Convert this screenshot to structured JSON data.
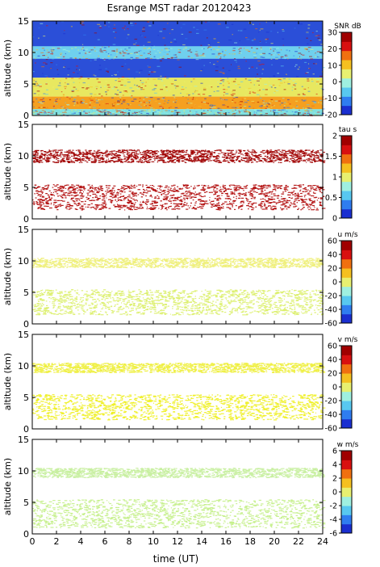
{
  "title": "Esrange MST radar 20120423",
  "xlabel": "time (UT)",
  "ylabel": "altitude (km)",
  "chart_data": [
    {
      "type": "heatmap",
      "panel": "snr",
      "colorbar_label": "SNR dB",
      "colorbar_ticks": [
        30,
        20,
        10,
        0,
        -10,
        -20
      ],
      "clim": [
        -20,
        30
      ],
      "colorbar_colors": [
        "#1a2fd0",
        "#2f7df0",
        "#58c8f0",
        "#9ff0e0",
        "#e8f070",
        "#f5c020",
        "#f07010",
        "#d81010",
        "#a00000"
      ],
      "x": [
        0,
        24
      ],
      "xticks": [
        0,
        2,
        4,
        6,
        8,
        10,
        12,
        14,
        16,
        18,
        20,
        22,
        24
      ],
      "ylim": [
        0,
        15
      ],
      "yticks": [
        0,
        5,
        10,
        15
      ],
      "ylabel": "altitude (km)",
      "layers": [
        {
          "alt_range": [
            6,
            15
          ],
          "value": -14,
          "color": "#2b4fd8"
        },
        {
          "alt_range": [
            9,
            11
          ],
          "value": -4,
          "color": "#6fd0ee"
        },
        {
          "alt_range": [
            3,
            6
          ],
          "value": 12,
          "color": "#e8e860"
        },
        {
          "alt_range": [
            1,
            3
          ],
          "value": 22,
          "color": "#f5a020"
        },
        {
          "alt_range": [
            0,
            1
          ],
          "value": 5,
          "color": "#80e0e0"
        }
      ]
    },
    {
      "type": "heatmap",
      "panel": "tau",
      "colorbar_label": "tau s",
      "colorbar_ticks": [
        2,
        1.5,
        1,
        0.5,
        0
      ],
      "clim": [
        0,
        2
      ],
      "colorbar_colors": [
        "#1a2fd0",
        "#2f7df0",
        "#58c8f0",
        "#9ff0e0",
        "#e8f070",
        "#f5c020",
        "#f07010",
        "#d81010",
        "#a00000"
      ],
      "ylim": [
        0,
        15
      ],
      "yticks": [
        0,
        5,
        10,
        15
      ],
      "ylabel": "altitude (km)",
      "layers": [
        {
          "alt_range": [
            9,
            11
          ],
          "value": 1.95,
          "color": "#a00000"
        },
        {
          "alt_range": [
            1.5,
            5.5
          ],
          "value": 1.95,
          "color": "#b00808"
        }
      ]
    },
    {
      "type": "heatmap",
      "panel": "u",
      "colorbar_label": "u m/s",
      "colorbar_ticks": [
        60,
        40,
        20,
        0,
        -20,
        -40,
        -60
      ],
      "clim": [
        -60,
        60
      ],
      "colorbar_colors": [
        "#1a2fd0",
        "#2f7df0",
        "#58c8f0",
        "#9ff0e0",
        "#e8f070",
        "#f5c020",
        "#f07010",
        "#d81010",
        "#a00000"
      ],
      "ylim": [
        0,
        15
      ],
      "yticks": [
        0,
        5,
        10,
        15
      ],
      "ylabel": "altitude (km)",
      "layers": [
        {
          "alt_range": [
            9,
            10.5
          ],
          "value": 12,
          "color": "#eef07a"
        },
        {
          "alt_range": [
            1.5,
            5.5
          ],
          "value": 10,
          "color": "#dcf06a"
        }
      ]
    },
    {
      "type": "heatmap",
      "panel": "v",
      "colorbar_label": "v m/s",
      "colorbar_ticks": [
        60,
        40,
        20,
        0,
        -20,
        -40,
        -60
      ],
      "clim": [
        -60,
        60
      ],
      "colorbar_colors": [
        "#1a2fd0",
        "#2f7df0",
        "#58c8f0",
        "#9ff0e0",
        "#e8f070",
        "#f5c020",
        "#f07010",
        "#d81010",
        "#a00000"
      ],
      "ylim": [
        0,
        15
      ],
      "yticks": [
        0,
        5,
        10,
        15
      ],
      "ylabel": "altitude (km)",
      "layers": [
        {
          "alt_range": [
            9,
            10.5
          ],
          "value": 14,
          "color": "#eef040"
        },
        {
          "alt_range": [
            1.5,
            5.5
          ],
          "value": 12,
          "color": "#eef020"
        }
      ]
    },
    {
      "type": "heatmap",
      "panel": "w",
      "colorbar_label": "w m/s",
      "colorbar_ticks": [
        6,
        4,
        2,
        0,
        -2,
        -4,
        -6
      ],
      "clim": [
        -6,
        6
      ],
      "colorbar_colors": [
        "#1a2fd0",
        "#2f7df0",
        "#58c8f0",
        "#9ff0e0",
        "#e8f070",
        "#f5c020",
        "#f07010",
        "#d81010",
        "#a00000"
      ],
      "ylim": [
        0,
        15
      ],
      "yticks": [
        0,
        5,
        10,
        15
      ],
      "ylabel": "altitude (km)",
      "layers": [
        {
          "alt_range": [
            9,
            10.5
          ],
          "value": 0.2,
          "color": "#c8f0a0"
        },
        {
          "alt_range": [
            1,
            5.5
          ],
          "value": 0.3,
          "color": "#c4f088"
        }
      ]
    }
  ]
}
